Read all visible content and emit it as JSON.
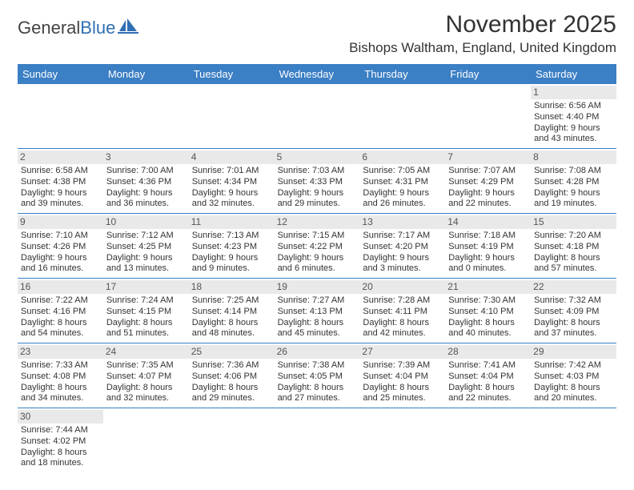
{
  "brand": {
    "general": "General",
    "blue": "Blue"
  },
  "title": "November 2025",
  "location": "Bishops Waltham, England, United Kingdom",
  "colors": {
    "header_bg": "#3b7fc4",
    "row_border": "#3b7fc4",
    "daynum_bg": "#e9e9e9",
    "text": "#333333"
  },
  "weekdays": [
    "Sunday",
    "Monday",
    "Tuesday",
    "Wednesday",
    "Thursday",
    "Friday",
    "Saturday"
  ],
  "cells": [
    {
      "blank": true
    },
    {
      "blank": true
    },
    {
      "blank": true
    },
    {
      "blank": true
    },
    {
      "blank": true
    },
    {
      "blank": true
    },
    {
      "day": "1",
      "sunrise": "Sunrise: 6:56 AM",
      "sunset": "Sunset: 4:40 PM",
      "d1": "Daylight: 9 hours",
      "d2": "and 43 minutes."
    },
    {
      "day": "2",
      "sunrise": "Sunrise: 6:58 AM",
      "sunset": "Sunset: 4:38 PM",
      "d1": "Daylight: 9 hours",
      "d2": "and 39 minutes."
    },
    {
      "day": "3",
      "sunrise": "Sunrise: 7:00 AM",
      "sunset": "Sunset: 4:36 PM",
      "d1": "Daylight: 9 hours",
      "d2": "and 36 minutes."
    },
    {
      "day": "4",
      "sunrise": "Sunrise: 7:01 AM",
      "sunset": "Sunset: 4:34 PM",
      "d1": "Daylight: 9 hours",
      "d2": "and 32 minutes."
    },
    {
      "day": "5",
      "sunrise": "Sunrise: 7:03 AM",
      "sunset": "Sunset: 4:33 PM",
      "d1": "Daylight: 9 hours",
      "d2": "and 29 minutes."
    },
    {
      "day": "6",
      "sunrise": "Sunrise: 7:05 AM",
      "sunset": "Sunset: 4:31 PM",
      "d1": "Daylight: 9 hours",
      "d2": "and 26 minutes."
    },
    {
      "day": "7",
      "sunrise": "Sunrise: 7:07 AM",
      "sunset": "Sunset: 4:29 PM",
      "d1": "Daylight: 9 hours",
      "d2": "and 22 minutes."
    },
    {
      "day": "8",
      "sunrise": "Sunrise: 7:08 AM",
      "sunset": "Sunset: 4:28 PM",
      "d1": "Daylight: 9 hours",
      "d2": "and 19 minutes."
    },
    {
      "day": "9",
      "sunrise": "Sunrise: 7:10 AM",
      "sunset": "Sunset: 4:26 PM",
      "d1": "Daylight: 9 hours",
      "d2": "and 16 minutes."
    },
    {
      "day": "10",
      "sunrise": "Sunrise: 7:12 AM",
      "sunset": "Sunset: 4:25 PM",
      "d1": "Daylight: 9 hours",
      "d2": "and 13 minutes."
    },
    {
      "day": "11",
      "sunrise": "Sunrise: 7:13 AM",
      "sunset": "Sunset: 4:23 PM",
      "d1": "Daylight: 9 hours",
      "d2": "and 9 minutes."
    },
    {
      "day": "12",
      "sunrise": "Sunrise: 7:15 AM",
      "sunset": "Sunset: 4:22 PM",
      "d1": "Daylight: 9 hours",
      "d2": "and 6 minutes."
    },
    {
      "day": "13",
      "sunrise": "Sunrise: 7:17 AM",
      "sunset": "Sunset: 4:20 PM",
      "d1": "Daylight: 9 hours",
      "d2": "and 3 minutes."
    },
    {
      "day": "14",
      "sunrise": "Sunrise: 7:18 AM",
      "sunset": "Sunset: 4:19 PM",
      "d1": "Daylight: 9 hours",
      "d2": "and 0 minutes."
    },
    {
      "day": "15",
      "sunrise": "Sunrise: 7:20 AM",
      "sunset": "Sunset: 4:18 PM",
      "d1": "Daylight: 8 hours",
      "d2": "and 57 minutes."
    },
    {
      "day": "16",
      "sunrise": "Sunrise: 7:22 AM",
      "sunset": "Sunset: 4:16 PM",
      "d1": "Daylight: 8 hours",
      "d2": "and 54 minutes."
    },
    {
      "day": "17",
      "sunrise": "Sunrise: 7:24 AM",
      "sunset": "Sunset: 4:15 PM",
      "d1": "Daylight: 8 hours",
      "d2": "and 51 minutes."
    },
    {
      "day": "18",
      "sunrise": "Sunrise: 7:25 AM",
      "sunset": "Sunset: 4:14 PM",
      "d1": "Daylight: 8 hours",
      "d2": "and 48 minutes."
    },
    {
      "day": "19",
      "sunrise": "Sunrise: 7:27 AM",
      "sunset": "Sunset: 4:13 PM",
      "d1": "Daylight: 8 hours",
      "d2": "and 45 minutes."
    },
    {
      "day": "20",
      "sunrise": "Sunrise: 7:28 AM",
      "sunset": "Sunset: 4:11 PM",
      "d1": "Daylight: 8 hours",
      "d2": "and 42 minutes."
    },
    {
      "day": "21",
      "sunrise": "Sunrise: 7:30 AM",
      "sunset": "Sunset: 4:10 PM",
      "d1": "Daylight: 8 hours",
      "d2": "and 40 minutes."
    },
    {
      "day": "22",
      "sunrise": "Sunrise: 7:32 AM",
      "sunset": "Sunset: 4:09 PM",
      "d1": "Daylight: 8 hours",
      "d2": "and 37 minutes."
    },
    {
      "day": "23",
      "sunrise": "Sunrise: 7:33 AM",
      "sunset": "Sunset: 4:08 PM",
      "d1": "Daylight: 8 hours",
      "d2": "and 34 minutes."
    },
    {
      "day": "24",
      "sunrise": "Sunrise: 7:35 AM",
      "sunset": "Sunset: 4:07 PM",
      "d1": "Daylight: 8 hours",
      "d2": "and 32 minutes."
    },
    {
      "day": "25",
      "sunrise": "Sunrise: 7:36 AM",
      "sunset": "Sunset: 4:06 PM",
      "d1": "Daylight: 8 hours",
      "d2": "and 29 minutes."
    },
    {
      "day": "26",
      "sunrise": "Sunrise: 7:38 AM",
      "sunset": "Sunset: 4:05 PM",
      "d1": "Daylight: 8 hours",
      "d2": "and 27 minutes."
    },
    {
      "day": "27",
      "sunrise": "Sunrise: 7:39 AM",
      "sunset": "Sunset: 4:04 PM",
      "d1": "Daylight: 8 hours",
      "d2": "and 25 minutes."
    },
    {
      "day": "28",
      "sunrise": "Sunrise: 7:41 AM",
      "sunset": "Sunset: 4:04 PM",
      "d1": "Daylight: 8 hours",
      "d2": "and 22 minutes."
    },
    {
      "day": "29",
      "sunrise": "Sunrise: 7:42 AM",
      "sunset": "Sunset: 4:03 PM",
      "d1": "Daylight: 8 hours",
      "d2": "and 20 minutes."
    },
    {
      "day": "30",
      "sunrise": "Sunrise: 7:44 AM",
      "sunset": "Sunset: 4:02 PM",
      "d1": "Daylight: 8 hours",
      "d2": "and 18 minutes.",
      "last": true
    }
  ]
}
